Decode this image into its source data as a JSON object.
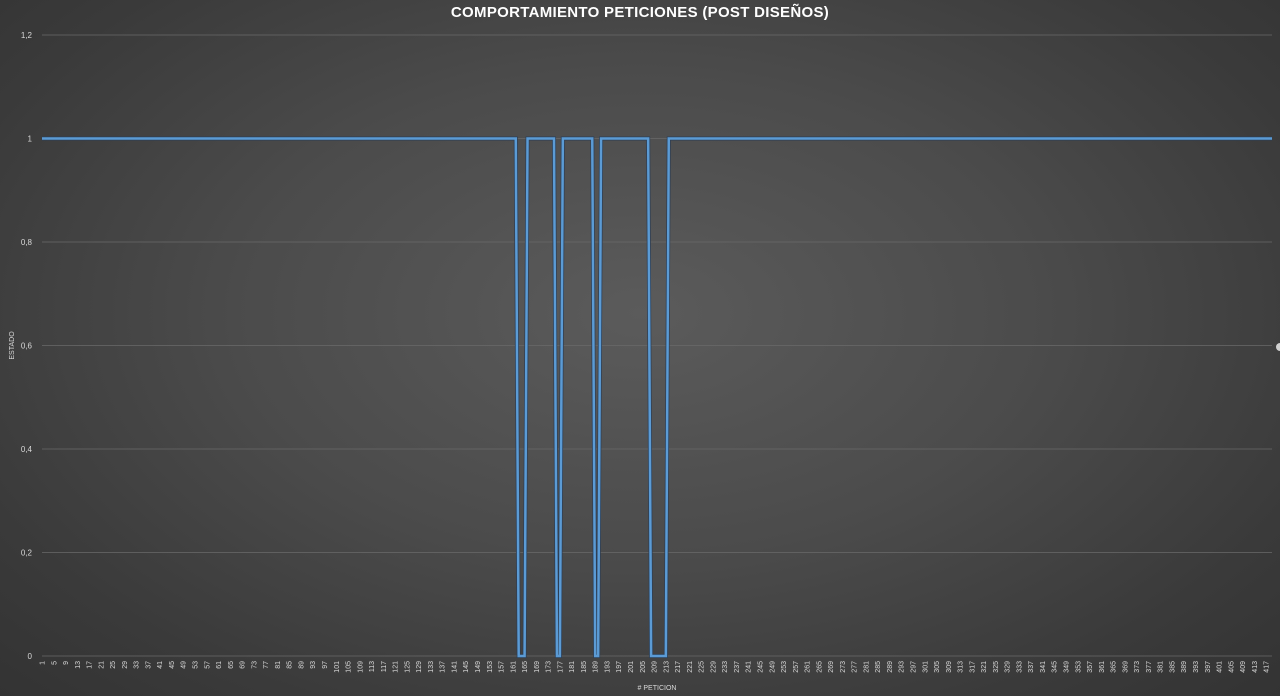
{
  "chart_data": {
    "type": "line",
    "title": "COMPORTAMIENTO PETICIONES (POST DISEÑOS)",
    "xlabel": "# PETICION",
    "ylabel": "ESTADO",
    "ylim": [
      0,
      1.2
    ],
    "xlim": [
      1,
      419
    ],
    "yticks": [
      {
        "value": 0,
        "label": "0"
      },
      {
        "value": 0.2,
        "label": "0,2"
      },
      {
        "value": 0.4,
        "label": "0,4"
      },
      {
        "value": 0.6,
        "label": "0,6"
      },
      {
        "value": 0.8,
        "label": "0,8"
      },
      {
        "value": 1,
        "label": "1"
      },
      {
        "value": 1.2,
        "label": "1,2"
      }
    ],
    "xtick_start": 1,
    "xtick_step": 4,
    "xtick_end": 417,
    "grid": true,
    "series": [
      {
        "color": "#5b9bd5",
        "points": [
          [
            1,
            1
          ],
          [
            162,
            1
          ],
          [
            163,
            0
          ],
          [
            165,
            0
          ],
          [
            166,
            1
          ],
          [
            175,
            1
          ],
          [
            176,
            0
          ],
          [
            177,
            0
          ],
          [
            178,
            1
          ],
          [
            188,
            1
          ],
          [
            189,
            0
          ],
          [
            190,
            0
          ],
          [
            191,
            1
          ],
          [
            207,
            1
          ],
          [
            208,
            0
          ],
          [
            213,
            0
          ],
          [
            214,
            1
          ],
          [
            419,
            1
          ]
        ]
      }
    ]
  },
  "ui": {
    "side_handle_icon": "resize-handle-icon"
  }
}
